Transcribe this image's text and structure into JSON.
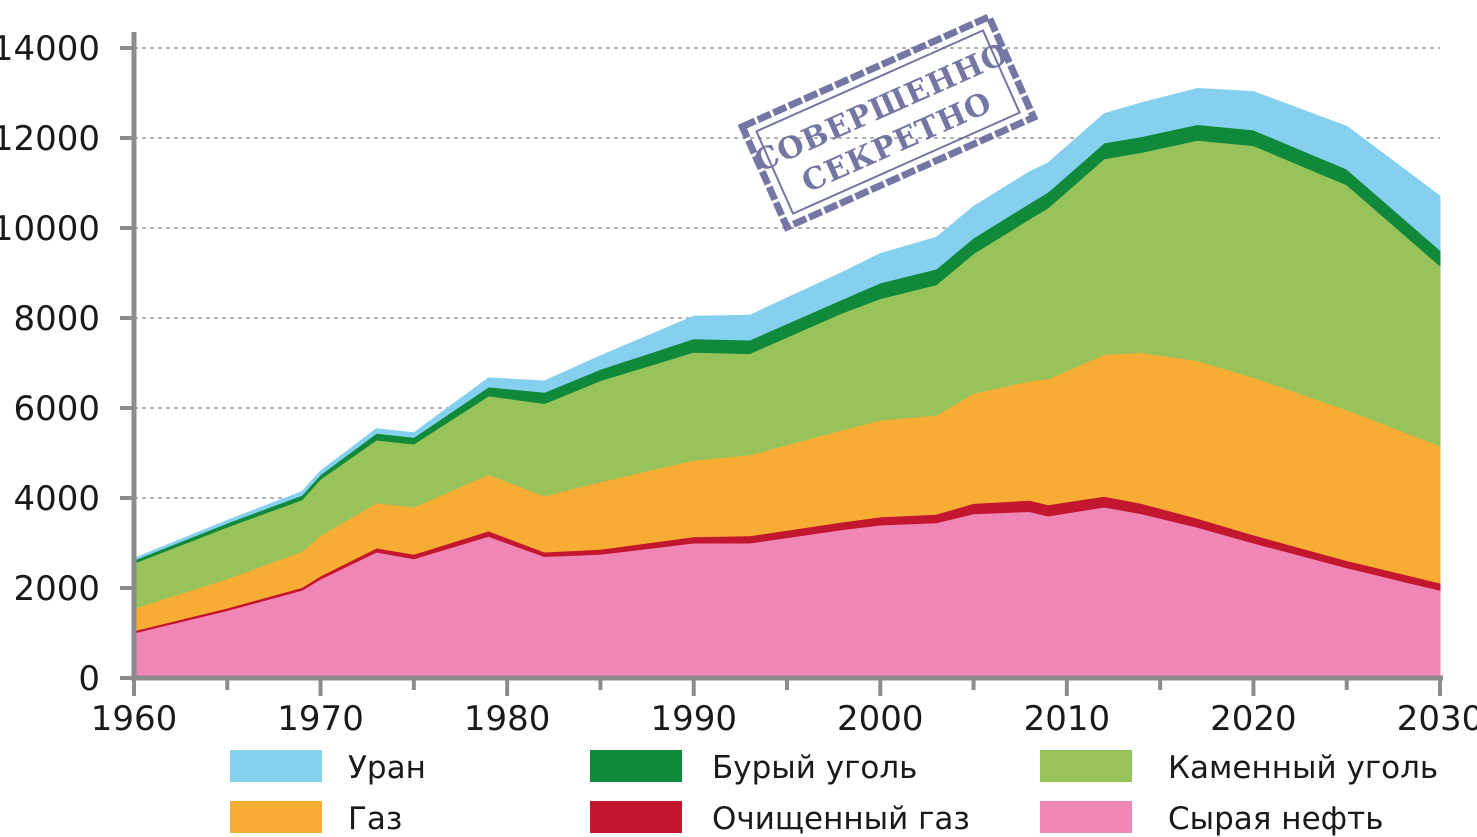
{
  "chart_data": {
    "type": "area",
    "stacked": true,
    "title": "",
    "xlabel": "",
    "ylabel": "",
    "xlim": [
      1960,
      2030
    ],
    "ylim": [
      0,
      14000
    ],
    "x_ticks": [
      1960,
      1970,
      1980,
      1990,
      2000,
      2010,
      2020,
      2030
    ],
    "y_ticks": [
      0,
      2000,
      4000,
      6000,
      8000,
      10000,
      12000,
      14000
    ],
    "grid": "horizontal-dashed",
    "legend_position": "bottom",
    "x": [
      1960,
      1965,
      1969,
      1970,
      1973,
      1975,
      1979,
      1982,
      1985,
      1990,
      1993,
      1998,
      2000,
      2003,
      2005,
      2008,
      2009,
      2012,
      2014,
      2017,
      2020,
      2025,
      2030
    ],
    "series": [
      {
        "name": "Сырая нефть",
        "color": "#f086b5",
        "values": [
          1000,
          1500,
          1950,
          2200,
          2800,
          2650,
          3150,
          2700,
          2750,
          3000,
          3000,
          3300,
          3400,
          3450,
          3650,
          3700,
          3600,
          3800,
          3650,
          3350,
          3000,
          2450,
          1950
        ]
      },
      {
        "name": "Очищенный газ",
        "color": "#c3162f",
        "values": [
          50,
          55,
          60,
          70,
          90,
          100,
          120,
          100,
          110,
          140,
          160,
          170,
          180,
          190,
          230,
          250,
          250,
          240,
          230,
          200,
          180,
          160,
          160
        ]
      },
      {
        "name": "Газ",
        "color": "#f7ad34",
        "values": [
          500,
          650,
          800,
          900,
          1000,
          1050,
          1250,
          1250,
          1500,
          1700,
          1800,
          2050,
          2150,
          2200,
          2450,
          2650,
          2800,
          3150,
          3350,
          3500,
          3500,
          3350,
          3050
        ]
      },
      {
        "name": "Каменный уголь",
        "color": "#97c35a",
        "values": [
          1000,
          1150,
          1150,
          1250,
          1400,
          1400,
          1750,
          2050,
          2250,
          2400,
          2250,
          2600,
          2700,
          2900,
          3100,
          3600,
          3800,
          4350,
          4450,
          4900,
          5150,
          5000,
          4000
        ]
      },
      {
        "name": "Бурый уголь",
        "color": "#11893a",
        "values": [
          70,
          90,
          100,
          100,
          150,
          150,
          200,
          250,
          250,
          300,
          300,
          300,
          350,
          350,
          350,
          350,
          350,
          350,
          350,
          350,
          350,
          350,
          350
        ]
      },
      {
        "name": "Уран",
        "color": "#86d0ef",
        "values": [
          40,
          60,
          80,
          80,
          100,
          100,
          200,
          250,
          300,
          500,
          550,
          600,
          650,
          700,
          700,
          700,
          650,
          650,
          750,
          800,
          850,
          950,
          1200
        ]
      }
    ]
  },
  "legend": {
    "items": [
      {
        "label": "Уран",
        "color": "#86d0ef"
      },
      {
        "label": "Бурый уголь",
        "color": "#11893a"
      },
      {
        "label": "Каменный уголь",
        "color": "#97c35a"
      },
      {
        "label": "Газ",
        "color": "#f7ad34"
      },
      {
        "label": "Очищенный газ",
        "color": "#c3162f"
      },
      {
        "label": "Сырая нефть",
        "color": "#f086b5"
      }
    ]
  },
  "stamp": {
    "line1": "СОВЕРШЕННО",
    "line2": "СЕКРЕТНО",
    "color": "#5c5f93"
  }
}
